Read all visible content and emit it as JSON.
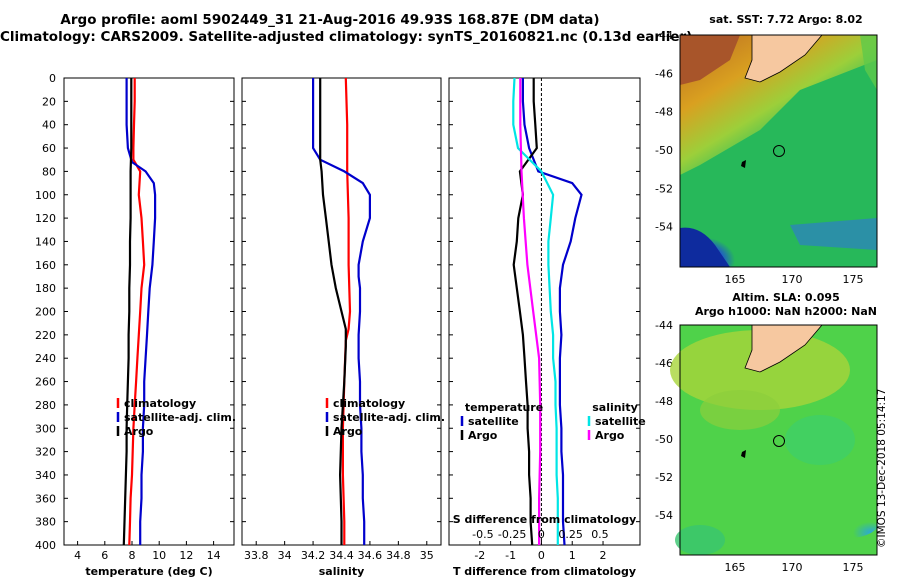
{
  "title_line1": "Argo profile: aoml 5902449_31 21-Aug-2016 49.93S 168.87E (DM data)",
  "title_line2": "Climatology: CARS2009. Satellite-adjusted climatology: synTS_20160821.nc (0.13d earlier)",
  "map_sst": {
    "title": "sat. SST: 7.72 Argo: 8.02",
    "lat_ticks": [
      "-44",
      "-46",
      "-48",
      "-50",
      "-52",
      "-54"
    ],
    "lon_ticks": [
      "165",
      "170",
      "175"
    ]
  },
  "map_sla": {
    "title_line1": "Altim. SLA: 0.095",
    "title_line2": "Argo h1000: NaN h2000: NaN",
    "lat_ticks": [
      "-44",
      "-46",
      "-48",
      "-50",
      "-52",
      "-54"
    ],
    "lon_ticks": [
      "165",
      "170",
      "175"
    ]
  },
  "watermark": "©IMOS 13-Dec-2018 05:14:17",
  "colors": {
    "climatology": "#ff0000",
    "satellite": "#0000cc",
    "argo": "#000000",
    "s_clim": "#ff00ff",
    "s_sat": "#00e5e5"
  },
  "chart_data": [
    {
      "type": "line",
      "id": "temperature",
      "xlabel": "temperature (deg C)",
      "ylabel": "depth",
      "xlim": [
        3,
        15.5
      ],
      "ylim": [
        400,
        0
      ],
      "xticks": [
        4,
        6,
        8,
        10,
        12,
        14
      ],
      "yticks": [
        0,
        20,
        40,
        60,
        80,
        100,
        120,
        140,
        160,
        180,
        200,
        220,
        240,
        260,
        280,
        300,
        320,
        340,
        360,
        380,
        400
      ],
      "legend": [
        "climatology",
        "satellite-adj. clim.",
        "Argo"
      ],
      "series": [
        {
          "name": "climatology",
          "depth": [
            0,
            20,
            40,
            60,
            70,
            80,
            100,
            120,
            140,
            160,
            180,
            200,
            220,
            240,
            260,
            280,
            300,
            320,
            340,
            360,
            380,
            400
          ],
          "values": [
            8.2,
            8.2,
            8.15,
            8.1,
            8.1,
            8.6,
            8.5,
            8.7,
            8.8,
            8.9,
            8.7,
            8.6,
            8.5,
            8.4,
            8.3,
            8.2,
            8.1,
            8.05,
            8.0,
            7.9,
            7.85,
            7.8
          ]
        },
        {
          "name": "satellite-adj. clim.",
          "depth": [
            0,
            20,
            40,
            60,
            72,
            80,
            90,
            100,
            120,
            140,
            160,
            180,
            200,
            220,
            240,
            260,
            280,
            300,
            320,
            340,
            360,
            380,
            400
          ],
          "values": [
            7.6,
            7.6,
            7.6,
            7.7,
            8.0,
            9.0,
            9.6,
            9.7,
            9.7,
            9.6,
            9.5,
            9.3,
            9.2,
            9.1,
            9.0,
            8.9,
            8.9,
            8.8,
            8.8,
            8.7,
            8.7,
            8.6,
            8.6
          ]
        },
        {
          "name": "Argo",
          "depth": [
            0,
            20,
            40,
            60,
            80,
            100,
            120,
            140,
            160,
            180,
            200,
            220,
            240,
            260,
            280,
            300,
            320,
            340,
            360,
            380,
            400
          ],
          "values": [
            7.95,
            7.95,
            7.95,
            7.95,
            7.9,
            7.9,
            7.9,
            7.85,
            7.85,
            7.8,
            7.8,
            7.75,
            7.75,
            7.7,
            7.65,
            7.6,
            7.6,
            7.55,
            7.5,
            7.45,
            7.4
          ]
        }
      ]
    },
    {
      "type": "line",
      "id": "salinity",
      "xlabel": "salinity",
      "ylabel": "depth",
      "xlim": [
        33.7,
        35.1
      ],
      "ylim": [
        400,
        0
      ],
      "xticks": [
        33.8,
        34,
        34.2,
        34.4,
        34.6,
        34.8,
        35
      ],
      "legend": [
        "climatology",
        "satellite-adj. clim.",
        "Argo"
      ],
      "series": [
        {
          "name": "climatology",
          "depth": [
            0,
            40,
            80,
            120,
            160,
            200,
            215,
            225,
            260,
            300,
            340,
            380,
            400
          ],
          "values": [
            34.43,
            34.44,
            34.44,
            34.45,
            34.45,
            34.46,
            34.45,
            34.43,
            34.42,
            34.41,
            34.41,
            34.42,
            34.42
          ]
        },
        {
          "name": "satellite-adj. clim.",
          "depth": [
            0,
            40,
            60,
            70,
            80,
            90,
            100,
            120,
            140,
            160,
            170,
            180,
            200,
            220,
            240,
            260,
            280,
            300,
            320,
            340,
            360,
            380,
            400
          ],
          "values": [
            34.2,
            34.2,
            34.2,
            34.25,
            34.42,
            34.55,
            34.6,
            34.6,
            34.55,
            34.52,
            34.52,
            34.53,
            34.53,
            34.52,
            34.52,
            34.53,
            34.53,
            34.54,
            34.54,
            34.55,
            34.55,
            34.56,
            34.56
          ]
        },
        {
          "name": "Argo",
          "depth": [
            0,
            40,
            70,
            80,
            100,
            120,
            140,
            160,
            180,
            200,
            215,
            230,
            260,
            300,
            340,
            380,
            400
          ],
          "values": [
            34.25,
            34.25,
            34.25,
            34.26,
            34.27,
            34.29,
            34.31,
            34.33,
            34.36,
            34.4,
            34.43,
            34.43,
            34.42,
            34.4,
            34.39,
            34.4,
            34.4
          ]
        }
      ]
    },
    {
      "type": "line",
      "id": "difference",
      "xlabel": "T difference from climatology",
      "xlabel_top": "S difference from climatology",
      "xlim": [
        -3,
        3.2
      ],
      "ylim": [
        400,
        0
      ],
      "xticks": [
        -2,
        -1,
        0,
        1,
        2
      ],
      "s_ticks": [
        "-0.5",
        "-0.25",
        "0",
        "0.25",
        "0.5"
      ],
      "legend_temperature_title": "temperature",
      "legend_salinity_title": "salinity",
      "legend_temperature": [
        "satellite",
        "Argo"
      ],
      "legend_salinity": [
        "satellite",
        "Argo"
      ],
      "series": [
        {
          "name": "T satellite",
          "depth": [
            0,
            20,
            40,
            60,
            80,
            90,
            100,
            120,
            140,
            160,
            180,
            200,
            220,
            240,
            260,
            280,
            300,
            320,
            340,
            360,
            380,
            400
          ],
          "values": [
            -0.6,
            -0.6,
            -0.55,
            -0.4,
            -0.1,
            1.0,
            1.3,
            1.1,
            0.95,
            0.7,
            0.6,
            0.6,
            0.65,
            0.6,
            0.6,
            0.6,
            0.65,
            0.65,
            0.7,
            0.7,
            0.7,
            0.75
          ]
        },
        {
          "name": "T Argo",
          "depth": [
            0,
            20,
            40,
            60,
            80,
            100,
            120,
            140,
            160,
            180,
            200,
            220,
            240,
            260,
            280,
            300,
            320,
            340,
            360,
            380,
            400
          ],
          "values": [
            -0.25,
            -0.25,
            -0.2,
            -0.15,
            -0.7,
            -0.6,
            -0.75,
            -0.8,
            -0.9,
            -0.8,
            -0.7,
            -0.6,
            -0.55,
            -0.5,
            -0.45,
            -0.45,
            -0.4,
            -0.4,
            -0.35,
            -0.35,
            -0.3
          ]
        },
        {
          "name": "S satellite",
          "depth": [
            0,
            20,
            40,
            60,
            80,
            100,
            120,
            140,
            160,
            180,
            200,
            220,
            240,
            260,
            280,
            300,
            320,
            340,
            360,
            380,
            400
          ],
          "values": [
            -0.23,
            -0.24,
            -0.24,
            -0.2,
            0.0,
            0.1,
            0.08,
            0.06,
            0.06,
            0.07,
            0.08,
            0.1,
            0.1,
            0.12,
            0.12,
            0.13,
            0.13,
            0.13,
            0.14,
            0.14,
            0.14
          ]
        },
        {
          "name": "S Argo",
          "depth": [
            0,
            40,
            80,
            120,
            160,
            200,
            240,
            280,
            320,
            360,
            400
          ],
          "values": [
            -0.18,
            -0.18,
            -0.17,
            -0.15,
            -0.12,
            -0.07,
            -0.02,
            -0.01,
            -0.01,
            -0.02,
            -0.02
          ]
        }
      ]
    }
  ]
}
